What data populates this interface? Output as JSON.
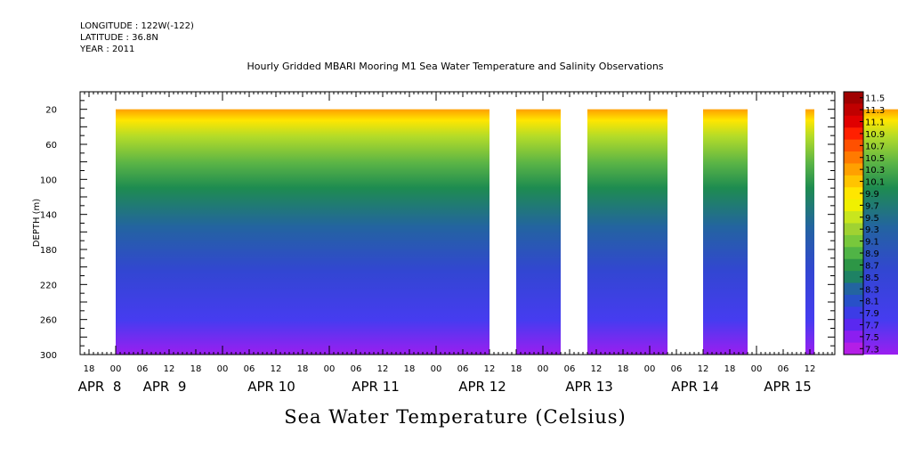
{
  "header": {
    "longitude": "LONGITUDE : 122W(-122)",
    "latitude": "LATITUDE : 36.8N",
    "year": "YEAR : 2011"
  },
  "chart_data": {
    "type": "heatmap",
    "title": "Hourly Gridded MBARI Mooring M1 Sea Water Temperature and Salinity Observations",
    "bottom_title": "Sea Water Temperature (Celsius)",
    "ylabel": "DEPTH (m)",
    "ylim": [
      300,
      0
    ],
    "yticks": [
      20,
      60,
      100,
      140,
      180,
      220,
      260,
      300
    ],
    "x_hour_ticks": [
      "18",
      "00",
      "06",
      "12",
      "18",
      "00",
      "06",
      "12",
      "18",
      "00",
      "06",
      "12",
      "18",
      "00",
      "06",
      "12",
      "18",
      "00",
      "06",
      "12",
      "18",
      "00",
      "06",
      "12",
      "18",
      "00",
      "06",
      "12"
    ],
    "x_day_labels": [
      "APR  8",
      "APR  9",
      "APR 10",
      "APR 11",
      "APR 12",
      "APR 13",
      "APR 14",
      "APR 15"
    ],
    "data_segments_hours": [
      [
        0,
        84
      ],
      [
        90,
        100
      ],
      [
        106,
        124
      ],
      [
        132,
        142
      ],
      [
        155,
        157
      ],
      [
        166,
        177
      ],
      [
        183,
        186
      ],
      [
        196,
        200
      ]
    ],
    "depth_range": [
      20,
      300
    ],
    "colorbar": {
      "levels": [
        "11.5",
        "11.3",
        "11.1",
        "10.9",
        "10.7",
        "10.5",
        "10.3",
        "10.1",
        "9.9",
        "9.7",
        "9.5",
        "9.3",
        "9.1",
        "8.9",
        "8.7",
        "8.5",
        "8.3",
        "8.1",
        "7.9",
        "7.7",
        "7.5",
        "7.3"
      ],
      "colors": [
        "#a00000",
        "#c00000",
        "#e00000",
        "#ff2000",
        "#ff5000",
        "#ff7a00",
        "#ffa000",
        "#ffc400",
        "#ffe600",
        "#f0f000",
        "#c8e61e",
        "#a0d232",
        "#78c83c",
        "#50b446",
        "#2d9646",
        "#1e8264",
        "#2364a0",
        "#2850c8",
        "#3c3ce6",
        "#5a28f0",
        "#8c1ef0",
        "#b41ee6"
      ]
    }
  }
}
